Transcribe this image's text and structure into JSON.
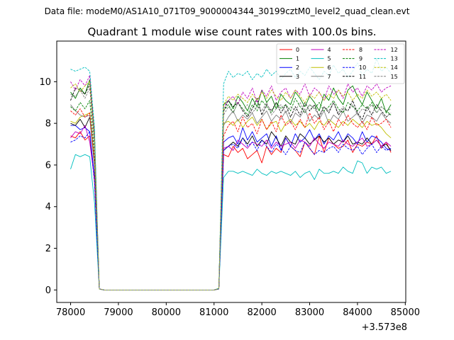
{
  "suptitle": "Data file: modeM0/AS1A10_071T09_9000004344_30199cztM0_level2_quad_clean.evt",
  "title": "Quadrant 1 module wise count rates with 100.0s bins.",
  "x_offset_label": "+3.573e8",
  "chart_data": {
    "type": "line",
    "title": "Quadrant 1 module wise count rates with 100.0s bins.",
    "xlabel": "",
    "ylabel": "",
    "x_offset": 357300000,
    "xlim": [
      77710,
      85010
    ],
    "ylim": [
      -0.6,
      11.95
    ],
    "xticks": [
      78000,
      79000,
      80000,
      81000,
      82000,
      83000,
      84000,
      85000
    ],
    "yticks": [
      0,
      2,
      4,
      6,
      8,
      10
    ],
    "grid": false,
    "legend_placement": "top-right",
    "x": [
      78000,
      78100,
      78200,
      78300,
      78400,
      78500,
      78600,
      78700,
      78800,
      78900,
      79000,
      79100,
      79200,
      79300,
      79400,
      79500,
      79600,
      79700,
      79800,
      79900,
      80000,
      80100,
      80200,
      80300,
      80400,
      80500,
      80600,
      80700,
      80800,
      80900,
      81000,
      81100,
      81200,
      81300,
      81400,
      81500,
      81600,
      81700,
      81800,
      81900,
      82000,
      82100,
      82200,
      82300,
      82400,
      82500,
      82600,
      82700,
      82800,
      82900,
      83000,
      83100,
      83200,
      83300,
      83400,
      83500,
      83600,
      83700,
      83800,
      83900,
      84000,
      84100,
      84200,
      84300,
      84400,
      84500,
      84600,
      84700
    ],
    "series": [
      {
        "name": "0",
        "color": "#ff0000",
        "dash": false,
        "values": [
          7.4,
          7.3,
          7.6,
          7.2,
          7.4,
          5.2,
          0.05,
          0,
          0,
          0,
          0,
          0,
          0,
          0,
          0,
          0,
          0,
          0,
          0,
          0,
          0,
          0,
          0,
          0,
          0,
          0,
          0,
          0,
          0,
          0,
          0,
          0.05,
          6.5,
          6.4,
          6.9,
          6.6,
          6.8,
          6.3,
          6.5,
          6.7,
          6.1,
          6.9,
          6.5,
          6.8,
          6.6,
          7.3,
          6.9,
          6.7,
          6.4,
          7.1,
          6.8,
          6.5,
          7.4,
          6.6,
          7.3,
          7.0,
          6.8,
          6.9,
          7.2,
          6.6,
          7.0,
          6.9,
          7.1,
          7.0,
          7.4,
          6.8,
          7.1,
          6.6
        ]
      },
      {
        "name": "1",
        "color": "#008000",
        "dash": false,
        "values": [
          9.5,
          9.2,
          9.7,
          9.4,
          10.1,
          7.6,
          0.05,
          0,
          0,
          0,
          0,
          0,
          0,
          0,
          0,
          0,
          0,
          0,
          0,
          0,
          0,
          0,
          0,
          0,
          0,
          0,
          0,
          0,
          0,
          0,
          0,
          0.08,
          8.9,
          9.1,
          8.7,
          9.3,
          9.0,
          8.6,
          9.2,
          8.8,
          9.6,
          9.0,
          9.3,
          8.7,
          9.4,
          9.1,
          8.9,
          9.5,
          9.2,
          8.8,
          9.3,
          9.0,
          8.6,
          9.4,
          9.1,
          9.7,
          9.2,
          8.9,
          9.6,
          9.8,
          9.3,
          8.9,
          9.5,
          9.1,
          8.7,
          9.2,
          8.5,
          8.9
        ]
      },
      {
        "name": "2",
        "color": "#0000ff",
        "dash": false,
        "values": [
          7.9,
          7.9,
          7.7,
          7.8,
          7.6,
          5.4,
          0.05,
          0,
          0,
          0,
          0,
          0,
          0,
          0,
          0,
          0,
          0,
          0,
          0,
          0,
          0,
          0,
          0,
          0,
          0,
          0,
          0,
          0,
          0,
          0,
          0,
          0.05,
          7.1,
          7.3,
          7.4,
          7.0,
          7.8,
          7.2,
          7.6,
          7.1,
          7.3,
          7.5,
          6.9,
          7.4,
          6.7,
          7.3,
          6.9,
          7.5,
          7.1,
          7.3,
          7.7,
          7.2,
          7.5,
          7.0,
          7.4,
          7.2,
          7.6,
          7.1,
          7.5,
          7.3,
          7.0,
          7.6,
          7.1,
          7.4,
          7.3,
          7.1,
          6.8,
          6.7
        ]
      },
      {
        "name": "3",
        "color": "#000000",
        "dash": false,
        "values": [
          8.0,
          7.9,
          8.2,
          7.8,
          8.3,
          6.0,
          0.05,
          0,
          0,
          0,
          0,
          0,
          0,
          0,
          0,
          0,
          0,
          0,
          0,
          0,
          0,
          0,
          0,
          0,
          0,
          0,
          0,
          0,
          0,
          0,
          0,
          0.05,
          6.7,
          6.9,
          7.1,
          6.9,
          7.3,
          7.0,
          7.4,
          6.9,
          7.2,
          7.0,
          7.6,
          7.3,
          6.9,
          7.4,
          7.1,
          7.0,
          7.5,
          7.3,
          7.0,
          7.2,
          7.4,
          7.1,
          7.3,
          7.0,
          7.2,
          7.1,
          7.4,
          7.0,
          7.1,
          7.0,
          7.3,
          7.0,
          7.2,
          6.9,
          7.0,
          6.7
        ]
      },
      {
        "name": "4",
        "color": "#bf00bf",
        "dash": false,
        "values": [
          7.3,
          7.6,
          7.5,
          7.9,
          7.1,
          5.3,
          0.05,
          0,
          0,
          0,
          0,
          0,
          0,
          0,
          0,
          0,
          0,
          0,
          0,
          0,
          0,
          0,
          0,
          0,
          0,
          0,
          0,
          0,
          0,
          0,
          0,
          0.05,
          6.8,
          6.9,
          6.7,
          7.2,
          7.0,
          6.8,
          7.1,
          7.0,
          6.9,
          7.2,
          6.8,
          7.1,
          6.9,
          7.0,
          7.1,
          6.8,
          7.2,
          7.1,
          6.9,
          7.3,
          7.0,
          6.8,
          7.1,
          7.0,
          6.9,
          7.2,
          7.0,
          6.9,
          7.1,
          7.3,
          6.9,
          7.0,
          7.2,
          6.9,
          7.1,
          6.9
        ]
      },
      {
        "name": "5",
        "color": "#00bfbf",
        "dash": false,
        "values": [
          5.8,
          6.5,
          6.4,
          6.5,
          6.4,
          4.2,
          0.05,
          0,
          0,
          0,
          0,
          0,
          0,
          0,
          0,
          0,
          0,
          0,
          0,
          0,
          0,
          0,
          0,
          0,
          0,
          0,
          0,
          0,
          0,
          0,
          0,
          0.05,
          5.4,
          5.7,
          5.7,
          5.6,
          5.7,
          5.6,
          5.5,
          5.8,
          5.6,
          5.5,
          5.7,
          5.6,
          5.7,
          5.6,
          5.5,
          5.7,
          5.4,
          5.6,
          5.7,
          5.3,
          5.8,
          5.6,
          5.6,
          5.7,
          5.6,
          5.9,
          5.7,
          5.6,
          6.2,
          6.1,
          5.6,
          5.9,
          5.8,
          5.9,
          5.6,
          5.7
        ]
      },
      {
        "name": "6",
        "color": "#bfbf00",
        "dash": false,
        "values": [
          8.1,
          8.0,
          8.3,
          8.4,
          8.5,
          6.2,
          0.05,
          0,
          0,
          0,
          0,
          0,
          0,
          0,
          0,
          0,
          0,
          0,
          0,
          0,
          0,
          0,
          0,
          0,
          0,
          0,
          0,
          0,
          0,
          0,
          0,
          0.05,
          8.0,
          8.1,
          7.9,
          8.2,
          7.8,
          8.1,
          8.3,
          7.9,
          8.2,
          7.7,
          8.0,
          8.1,
          7.6,
          8.0,
          8.2,
          7.9,
          8.1,
          7.8,
          8.0,
          7.7,
          8.1,
          7.9,
          8.2,
          8.0,
          7.8,
          8.1,
          7.9,
          8.2,
          8.0,
          7.8,
          8.1,
          7.9,
          8.0,
          7.8,
          7.5,
          7.3
        ]
      },
      {
        "name": "7",
        "color": "#808080",
        "dash": false,
        "values": [
          8.9,
          8.6,
          8.4,
          8.3,
          8.4,
          6.1,
          0.05,
          0,
          0,
          0,
          0,
          0,
          0,
          0,
          0,
          0,
          0,
          0,
          0,
          0,
          0,
          0,
          0,
          0,
          0,
          0,
          0,
          0,
          0,
          0,
          0,
          0.07,
          7.9,
          8.3,
          8.6,
          8.1,
          8.4,
          8.2,
          8.5,
          8.0,
          8.3,
          8.6,
          8.1,
          8.4,
          8.2,
          8.6,
          8.0,
          8.5,
          8.3,
          8.7,
          8.1,
          8.4,
          8.2,
          8.6,
          8.0,
          8.4,
          8.2,
          8.6,
          8.1,
          8.3,
          8.5,
          8.0,
          8.4,
          8.3,
          8.1,
          8.5,
          8.2,
          8.0
        ]
      },
      {
        "name": "8",
        "color": "#ff0000",
        "dash": true,
        "values": [
          8.6,
          8.4,
          8.7,
          8.3,
          8.5,
          6.1,
          0.05,
          0,
          0,
          0,
          0,
          0,
          0,
          0,
          0,
          0,
          0,
          0,
          0,
          0,
          0,
          0,
          0,
          0,
          0,
          0,
          0,
          0,
          0,
          0,
          0,
          0.06,
          7.4,
          7.9,
          8.1,
          7.6,
          8.3,
          7.8,
          8.0,
          7.5,
          8.2,
          7.7,
          8.1,
          7.6,
          8.4,
          7.9,
          8.1,
          7.7,
          8.2,
          7.8,
          8.5,
          8.0,
          8.3,
          7.7,
          8.1,
          7.6,
          8.2,
          7.9,
          8.4,
          8.0,
          7.8,
          8.1,
          7.7,
          8.3,
          7.9,
          8.0,
          8.2,
          7.8
        ]
      },
      {
        "name": "9",
        "color": "#008000",
        "dash": true,
        "values": [
          8.8,
          8.6,
          9.0,
          8.7,
          9.1,
          6.5,
          0.05,
          0,
          0,
          0,
          0,
          0,
          0,
          0,
          0,
          0,
          0,
          0,
          0,
          0,
          0,
          0,
          0,
          0,
          0,
          0,
          0,
          0,
          0,
          0,
          0,
          0.06,
          8.6,
          8.9,
          8.5,
          9.0,
          8.7,
          8.4,
          8.9,
          8.6,
          9.1,
          8.8,
          8.5,
          9.0,
          8.7,
          8.9,
          8.6,
          9.2,
          8.8,
          8.5,
          8.9,
          8.7,
          9.0,
          8.6,
          8.8,
          9.1,
          8.7,
          8.5,
          9.0,
          8.8,
          8.6,
          8.9,
          8.7,
          9.0,
          8.5,
          8.8,
          8.6,
          8.4
        ]
      },
      {
        "name": "10",
        "color": "#0000ff",
        "dash": true,
        "values": [
          7.1,
          7.2,
          7.4,
          7.3,
          7.6,
          5.2,
          0.05,
          0,
          0,
          0,
          0,
          0,
          0,
          0,
          0,
          0,
          0,
          0,
          0,
          0,
          0,
          0,
          0,
          0,
          0,
          0,
          0,
          0,
          0,
          0,
          0,
          0.05,
          6.7,
          6.9,
          7.0,
          6.8,
          7.3,
          6.9,
          7.1,
          6.7,
          7.2,
          6.9,
          6.6,
          7.0,
          6.8,
          6.5,
          6.9,
          6.7,
          6.6,
          7.1,
          6.8,
          6.5,
          6.7,
          6.6,
          6.8,
          6.9,
          6.6,
          7.0,
          6.8,
          6.7,
          6.9,
          6.5,
          6.8,
          7.0,
          6.6,
          6.9,
          6.7,
          6.8
        ]
      },
      {
        "name": "11",
        "color": "#000000",
        "dash": true,
        "values": [
          9.1,
          9.7,
          9.6,
          9.4,
          9.9,
          7.1,
          0.05,
          0,
          0,
          0,
          0,
          0,
          0,
          0,
          0,
          0,
          0,
          0,
          0,
          0,
          0,
          0,
          0,
          0,
          0,
          0,
          0,
          0,
          0,
          0,
          0,
          0.06,
          8.6,
          9.1,
          8.8,
          9.0,
          8.6,
          8.3,
          8.7,
          9.2,
          8.4,
          8.9,
          8.6,
          9.0,
          8.5,
          8.9,
          8.3,
          8.8,
          8.4,
          9.0,
          8.6,
          8.9,
          8.3,
          8.8,
          8.5,
          9.0,
          8.4,
          8.7,
          8.6,
          9.1,
          8.5,
          8.2,
          8.8,
          8.4,
          8.9,
          8.6,
          8.3,
          8.5
        ]
      },
      {
        "name": "12",
        "color": "#bf00bf",
        "dash": true,
        "values": [
          10.0,
          9.6,
          10.1,
          9.8,
          10.3,
          7.4,
          0.05,
          0,
          0,
          0,
          0,
          0,
          0,
          0,
          0,
          0,
          0,
          0,
          0,
          0,
          0,
          0,
          0,
          0,
          0,
          0,
          0,
          0,
          0,
          0,
          0,
          0.07,
          8.8,
          9.1,
          9.3,
          8.9,
          9.5,
          9.2,
          9.7,
          9.0,
          9.6,
          9.3,
          9.8,
          9.1,
          9.5,
          9.7,
          9.2,
          9.6,
          9.4,
          9.9,
          9.3,
          9.7,
          9.5,
          9.1,
          9.8,
          9.4,
          9.6,
          9.2,
          9.9,
          9.5,
          9.7,
          9.3,
          9.8,
          9.6,
          9.9,
          9.5,
          9.7,
          9.8
        ]
      },
      {
        "name": "13",
        "color": "#00bfbf",
        "dash": true,
        "values": [
          10.6,
          10.5,
          10.6,
          10.7,
          10.5,
          7.8,
          0.05,
          0,
          0,
          0,
          0,
          0,
          0,
          0,
          0,
          0,
          0,
          0,
          0,
          0,
          0,
          0,
          0,
          0,
          0,
          0,
          0,
          0,
          0,
          0,
          0,
          0.08,
          9.9,
          10.5,
          10.2,
          10.4,
          10.3,
          10.5,
          10.1,
          10.4,
          10.2,
          10.6,
          10.3,
          10.5,
          10.1,
          10.4,
          10.6,
          10.2,
          10.5,
          10.3,
          10.7,
          10.4,
          10.1,
          10.5,
          10.3,
          10.8,
          10.4,
          10.6,
          10.2,
          10.5,
          10.9,
          10.3,
          10.6,
          10.4,
          11.1,
          10.5,
          10.7,
          10.4
        ]
      },
      {
        "name": "14",
        "color": "#bfbf00",
        "dash": true,
        "values": [
          9.7,
          9.9,
          9.5,
          9.8,
          10.0,
          7.2,
          0.05,
          0,
          0,
          0,
          0,
          0,
          0,
          0,
          0,
          0,
          0,
          0,
          0,
          0,
          0,
          0,
          0,
          0,
          0,
          0,
          0,
          0,
          0,
          0,
          0,
          0.07,
          8.9,
          9.3,
          9.1,
          9.4,
          9.2,
          9.0,
          9.4,
          9.1,
          9.5,
          9.2,
          9.6,
          9.3,
          9.1,
          9.5,
          9.2,
          9.6,
          9.3,
          9.0,
          9.4,
          9.2,
          9.5,
          9.1,
          9.4,
          9.2,
          9.6,
          9.3,
          9.5,
          9.1,
          9.4,
          9.2,
          9.6,
          9.3,
          9.5,
          9.2,
          9.4,
          9.1
        ]
      },
      {
        "name": "15",
        "color": "#808080",
        "dash": true,
        "values": [
          9.4,
          9.3,
          9.6,
          9.2,
          9.7,
          6.9,
          0.05,
          0,
          0,
          0,
          0,
          0,
          0,
          0,
          0,
          0,
          0,
          0,
          0,
          0,
          0,
          0,
          0,
          0,
          0,
          0,
          0,
          0,
          0,
          0,
          0,
          0.06,
          8.4,
          8.8,
          8.5,
          9.0,
          8.6,
          8.9,
          8.5,
          8.8,
          8.6,
          9.0,
          8.4,
          8.7,
          8.9,
          8.5,
          8.8,
          8.6,
          9.0,
          8.5,
          8.9,
          8.7,
          8.4,
          8.8,
          8.6,
          9.0,
          8.5,
          8.8,
          8.6,
          8.9,
          8.4,
          8.7,
          8.6,
          8.9,
          8.5,
          8.8,
          8.6,
          8.7
        ]
      }
    ]
  }
}
